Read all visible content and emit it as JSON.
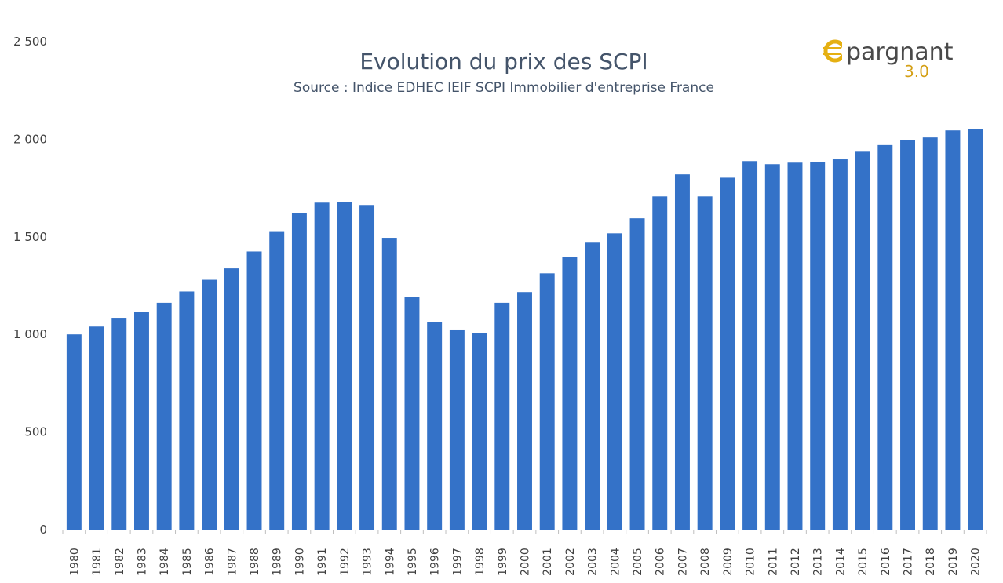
{
  "logo": {
    "text": "pargnant",
    "version": "3.0",
    "accent_color": "#e5b012"
  },
  "chart_data": {
    "type": "bar",
    "title": "Evolution du prix des SCPI",
    "subtitle": "Source : Indice EDHEC IEIF SCPI Immobilier d'entreprise France",
    "xlabel": "",
    "ylabel": "",
    "ylim": [
      0,
      2500
    ],
    "yticks": [
      0,
      500,
      1000,
      1500,
      2000,
      2500
    ],
    "ytick_labels": [
      "0",
      "500",
      "1 000",
      "1 500",
      "2 000",
      "2 500"
    ],
    "bar_color": "#3472c8",
    "grid": false,
    "categories": [
      "1980",
      "1981",
      "1982",
      "1983",
      "1984",
      "1985",
      "1986",
      "1987",
      "1988",
      "1989",
      "1990",
      "1991",
      "1992",
      "1993",
      "1994",
      "1995",
      "1996",
      "1997",
      "1998",
      "1999",
      "2000",
      "2001",
      "2002",
      "2003",
      "2004",
      "2005",
      "2006",
      "2007",
      "2008",
      "2009",
      "2010",
      "2011",
      "2012",
      "2013",
      "2014",
      "2015",
      "2016",
      "2017",
      "2018",
      "2019",
      "2020"
    ],
    "values": [
      1000,
      1040,
      1085,
      1115,
      1162,
      1220,
      1280,
      1338,
      1425,
      1525,
      1620,
      1675,
      1680,
      1663,
      1495,
      1193,
      1065,
      1025,
      1005,
      1162,
      1217,
      1313,
      1398,
      1470,
      1518,
      1595,
      1707,
      1820,
      1707,
      1803,
      1888,
      1872,
      1880,
      1884,
      1897,
      1936,
      1970,
      1997,
      2009,
      2045,
      2050
    ]
  }
}
